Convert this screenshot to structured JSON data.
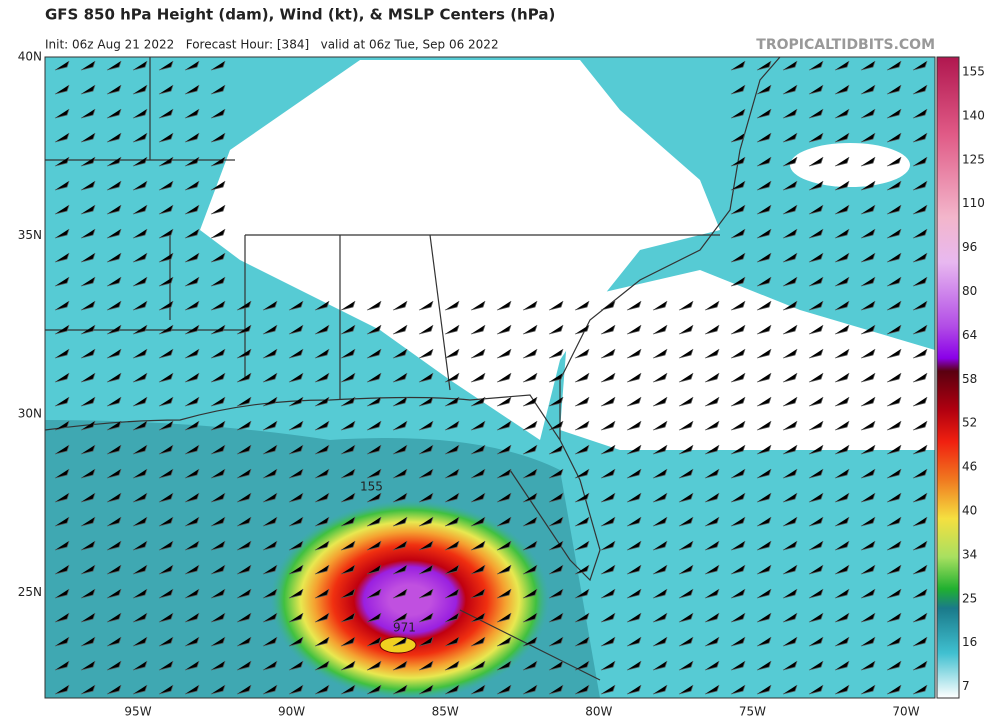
{
  "header": {
    "title": "GFS 850 hPa Height (dam), Wind (kt), & MSLP Centers (hPa)",
    "subtitle": "Init: 06z Aug 21 2022   Forecast Hour: [384]   valid at 06z Tue, Sep 06 2022",
    "credit": "TROPICALTIDBITS.COM"
  },
  "map": {
    "lat_labels": [
      "40N",
      "35N",
      "30N",
      "25N"
    ],
    "lon_labels": [
      "95W",
      "90W",
      "85W",
      "80W",
      "75W",
      "70W"
    ],
    "contour_labels": [
      "155",
      "971"
    ]
  },
  "colorbar": {
    "labels": [
      155,
      140,
      125,
      110,
      96,
      80,
      64,
      58,
      52,
      46,
      40,
      34,
      25,
      16,
      7
    ]
  }
}
